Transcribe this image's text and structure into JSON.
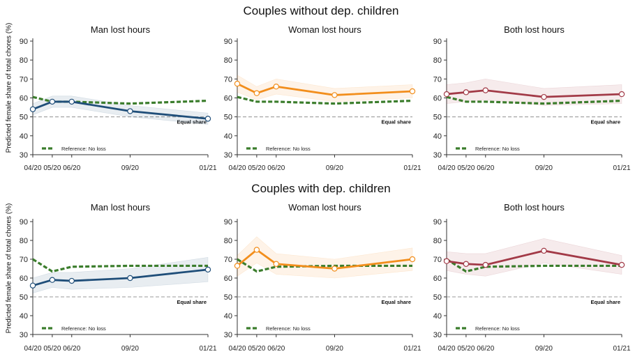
{
  "ylabel": "Predicted female share of total chores (%)",
  "reference_line_label": "Equal share",
  "groups": [
    {
      "title": "Couples without dep. children"
    },
    {
      "title": "Couples with dep. children"
    }
  ],
  "colors": {
    "man": "#1f4e79",
    "woman": "#f28e1c",
    "both": "#a23a47",
    "reference": "#3b7d2c",
    "equal_line": "#999999"
  },
  "chart_data": [
    {
      "type": "line",
      "group": "Couples without dep. children",
      "title": "Man lost hours",
      "categories": [
        "04/20",
        "05/20",
        "06/20",
        "09/20",
        "01/21"
      ],
      "x_months": [
        0,
        1,
        2,
        5,
        9
      ],
      "yticks": [
        30,
        40,
        50,
        60,
        70,
        80,
        90
      ],
      "ylim": [
        30,
        90
      ],
      "equal_share": 50,
      "equal_share_label": "Equal share",
      "legend": {
        "label": "Reference: No loss",
        "placement": "bottom-left"
      },
      "series": [
        {
          "role": "estimate",
          "color_key": "man",
          "values": [
            54,
            58,
            58,
            53,
            49
          ],
          "ci_low": [
            51,
            55,
            55,
            50,
            46
          ],
          "ci_high": [
            57,
            61,
            61,
            56,
            52
          ]
        },
        {
          "name": "Reference: No loss",
          "role": "reference",
          "color_key": "reference",
          "values": [
            60.5,
            58,
            58,
            57,
            58.5
          ]
        }
      ]
    },
    {
      "type": "line",
      "group": "Couples without dep. children",
      "title": "Woman lost hours",
      "categories": [
        "04/20",
        "05/20",
        "06/20",
        "09/20",
        "01/21"
      ],
      "x_months": [
        0,
        1,
        2,
        5,
        9
      ],
      "yticks": [
        30,
        40,
        50,
        60,
        70,
        80,
        90
      ],
      "ylim": [
        30,
        90
      ],
      "equal_share": 50,
      "equal_share_label": "Equal share",
      "legend": {
        "label": "Reference: No loss",
        "placement": "bottom-left"
      },
      "series": [
        {
          "role": "estimate",
          "color_key": "woman",
          "values": [
            67.5,
            62.5,
            66,
            61.5,
            63.5
          ],
          "ci_low": [
            63,
            59,
            62,
            58,
            60
          ],
          "ci_high": [
            72,
            66,
            70,
            65,
            67
          ]
        },
        {
          "name": "Reference: No loss",
          "role": "reference",
          "color_key": "reference",
          "values": [
            60.5,
            58,
            58,
            57,
            58.5
          ]
        }
      ]
    },
    {
      "type": "line",
      "group": "Couples without dep. children",
      "title": "Both lost hours",
      "categories": [
        "04/20",
        "05/20",
        "06/20",
        "09/20",
        "01/21"
      ],
      "x_months": [
        0,
        1,
        2,
        5,
        9
      ],
      "yticks": [
        30,
        40,
        50,
        60,
        70,
        80,
        90
      ],
      "ylim": [
        30,
        90
      ],
      "equal_share": 50,
      "equal_share_label": "Equal share",
      "legend": {
        "label": "Reference: No loss",
        "placement": "bottom-left"
      },
      "series": [
        {
          "role": "estimate",
          "color_key": "both",
          "values": [
            62,
            63,
            64,
            60.5,
            62
          ],
          "ci_low": [
            57,
            58,
            59,
            56,
            57
          ],
          "ci_high": [
            67,
            68,
            70,
            65,
            67
          ]
        },
        {
          "name": "Reference: No loss",
          "role": "reference",
          "color_key": "reference",
          "values": [
            60.5,
            58,
            58,
            57,
            58.5
          ]
        }
      ]
    },
    {
      "type": "line",
      "group": "Couples with dep. children",
      "title": "Man lost hours",
      "categories": [
        "04/20",
        "05/20",
        "06/20",
        "09/20",
        "01/21"
      ],
      "x_months": [
        0,
        1,
        2,
        5,
        9
      ],
      "yticks": [
        30,
        40,
        50,
        60,
        70,
        80,
        90
      ],
      "ylim": [
        30,
        90
      ],
      "equal_share": 50,
      "equal_share_label": "Equal share",
      "legend": {
        "label": "Reference: No loss",
        "placement": "bottom-left"
      },
      "series": [
        {
          "role": "estimate",
          "color_key": "man",
          "values": [
            56,
            59,
            58.5,
            60,
            64.5
          ],
          "ci_low": [
            52,
            55,
            54,
            55,
            58
          ],
          "ci_high": [
            60,
            63,
            63,
            65,
            71
          ]
        },
        {
          "name": "Reference: No loss",
          "role": "reference",
          "color_key": "reference",
          "values": [
            70,
            63.5,
            66,
            66.5,
            66.5
          ]
        }
      ]
    },
    {
      "type": "line",
      "group": "Couples with dep. children",
      "title": "Woman lost hours",
      "categories": [
        "04/20",
        "05/20",
        "06/20",
        "09/20",
        "01/21"
      ],
      "x_months": [
        0,
        1,
        2,
        5,
        9
      ],
      "yticks": [
        30,
        40,
        50,
        60,
        70,
        80,
        90
      ],
      "ylim": [
        30,
        90
      ],
      "equal_share": 50,
      "equal_share_label": "Equal share",
      "legend": {
        "label": "Reference: No loss",
        "placement": "bottom-left"
      },
      "series": [
        {
          "role": "estimate",
          "color_key": "woman",
          "values": [
            66.5,
            75,
            67.5,
            65,
            70
          ],
          "ci_low": [
            61,
            68,
            62,
            60,
            64
          ],
          "ci_high": [
            72,
            82,
            73,
            70,
            76
          ]
        },
        {
          "name": "Reference: No loss",
          "role": "reference",
          "color_key": "reference",
          "values": [
            70,
            63.5,
            66,
            66.5,
            66.5
          ]
        }
      ]
    },
    {
      "type": "line",
      "group": "Couples with dep. children",
      "title": "Both lost hours",
      "categories": [
        "04/20",
        "05/20",
        "06/20",
        "09/20",
        "01/21"
      ],
      "x_months": [
        0,
        1,
        2,
        5,
        9
      ],
      "yticks": [
        30,
        40,
        50,
        60,
        70,
        80,
        90
      ],
      "ylim": [
        30,
        90
      ],
      "equal_share": 50,
      "equal_share_label": "Equal share",
      "legend": {
        "label": "Reference: No loss",
        "placement": "bottom-left"
      },
      "series": [
        {
          "role": "estimate",
          "color_key": "both",
          "values": [
            69,
            67.5,
            67,
            74.5,
            67
          ],
          "ci_low": [
            64,
            62,
            61,
            68,
            62
          ],
          "ci_high": [
            74,
            73,
            73,
            81,
            72
          ]
        },
        {
          "name": "Reference: No loss",
          "role": "reference",
          "color_key": "reference",
          "values": [
            70,
            63.5,
            66,
            66.5,
            66.5
          ]
        }
      ]
    }
  ]
}
